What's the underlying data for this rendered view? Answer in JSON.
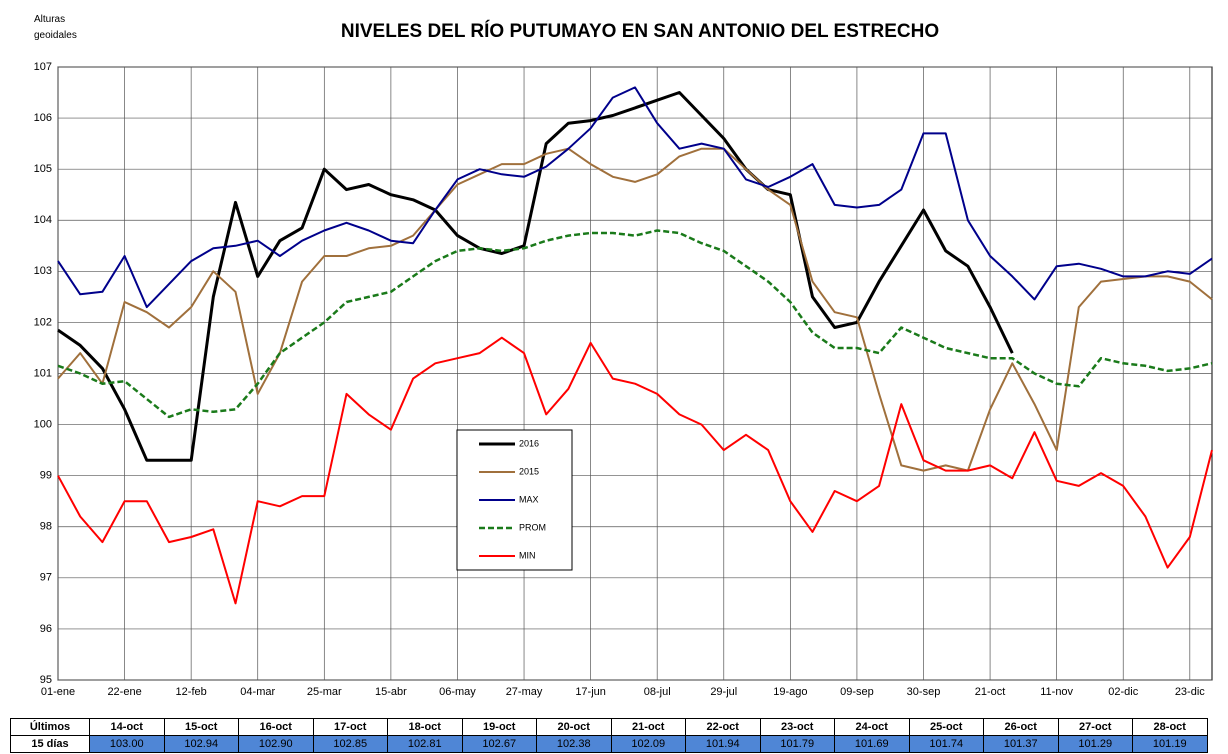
{
  "chart_data": {
    "type": "line",
    "title": "NIVELES DEL RÍO PUTUMAYO EN SAN ANTONIO DEL ESTRECHO",
    "y_label": "Alturas geoidales",
    "categories": [
      "01-ene",
      null,
      null,
      "22-ene",
      null,
      null,
      "12-feb",
      null,
      null,
      "04-mar",
      null,
      null,
      "25-mar",
      null,
      null,
      "15-abr",
      null,
      null,
      "06-may",
      null,
      null,
      "27-may",
      null,
      null,
      "17-jun",
      null,
      null,
      "08-jul",
      null,
      null,
      "29-jul",
      null,
      null,
      "19-ago",
      null,
      null,
      "09-sep",
      null,
      null,
      "30-sep",
      null,
      null,
      "21-oct",
      null,
      null,
      "11-nov",
      null,
      null,
      "02-dic",
      null,
      null,
      "23-dic",
      null
    ],
    "ylim": [
      95,
      107
    ],
    "yticks": [
      95,
      96,
      97,
      98,
      99,
      100,
      101,
      102,
      103,
      104,
      105,
      106,
      107
    ],
    "grid": true,
    "legend": "center",
    "series": [
      {
        "name": "2016",
        "color": "#000000",
        "style": "solid",
        "width": 3,
        "values": [
          101.85,
          101.55,
          101.1,
          100.3,
          99.3,
          99.3,
          99.3,
          102.5,
          104.35,
          102.9,
          103.6,
          103.85,
          105.0,
          104.6,
          104.7,
          104.5,
          104.4,
          104.2,
          103.7,
          103.45,
          103.35,
          103.5,
          105.5,
          105.9,
          105.95,
          106.05,
          106.2,
          106.35,
          106.5,
          106.05,
          105.6,
          105.0,
          104.6,
          104.5,
          102.5,
          101.9,
          102.0,
          102.8,
          103.5,
          104.2,
          103.4,
          103.1,
          102.3,
          101.4,
          null,
          null,
          null,
          null,
          null,
          null,
          null,
          null,
          null
        ]
      },
      {
        "name": "2015",
        "color": "#a0703c",
        "style": "solid",
        "width": 2,
        "values": [
          100.9,
          101.4,
          100.8,
          102.4,
          102.2,
          101.9,
          102.3,
          103.0,
          102.6,
          100.6,
          101.4,
          102.8,
          103.3,
          103.3,
          103.45,
          103.5,
          103.7,
          104.2,
          104.7,
          104.9,
          105.1,
          105.1,
          105.3,
          105.4,
          105.1,
          104.85,
          104.75,
          104.9,
          105.25,
          105.4,
          105.4,
          105.0,
          104.6,
          104.3,
          102.8,
          102.2,
          102.1,
          100.6,
          99.2,
          99.1,
          99.2,
          99.1,
          100.3,
          101.2,
          100.4,
          99.5,
          102.3,
          102.8,
          102.85,
          102.9,
          102.9,
          102.8,
          102.45
        ]
      },
      {
        "name": "MAX",
        "color": "#00008b",
        "style": "solid",
        "width": 2,
        "values": [
          103.2,
          102.55,
          102.6,
          103.3,
          102.3,
          102.75,
          103.2,
          103.45,
          103.5,
          103.6,
          103.3,
          103.6,
          103.8,
          103.95,
          103.8,
          103.6,
          103.55,
          104.2,
          104.8,
          105.0,
          104.9,
          104.85,
          105.05,
          105.4,
          105.8,
          106.4,
          106.6,
          105.9,
          105.4,
          105.5,
          105.4,
          104.8,
          104.65,
          104.85,
          105.1,
          104.3,
          104.25,
          104.3,
          104.6,
          105.7,
          105.7,
          104.0,
          103.3,
          102.9,
          102.45,
          103.1,
          103.15,
          103.05,
          102.9,
          102.9,
          103.0,
          102.95,
          103.25
        ]
      },
      {
        "name": "PROM",
        "color": "#1a7a1a",
        "style": "dashed",
        "width": 2.5,
        "values": [
          101.15,
          101.0,
          100.8,
          100.85,
          100.5,
          100.15,
          100.3,
          100.25,
          100.3,
          100.8,
          101.4,
          101.7,
          102.0,
          102.4,
          102.5,
          102.6,
          102.9,
          103.2,
          103.4,
          103.45,
          103.4,
          103.45,
          103.6,
          103.7,
          103.75,
          103.75,
          103.7,
          103.8,
          103.75,
          103.55,
          103.4,
          103.1,
          102.8,
          102.4,
          101.8,
          101.5,
          101.5,
          101.4,
          101.9,
          101.7,
          101.5,
          101.4,
          101.3,
          101.3,
          101.0,
          100.8,
          100.75,
          101.3,
          101.2,
          101.15,
          101.05,
          101.1,
          101.2
        ]
      },
      {
        "name": "MIN",
        "color": "#ff0000",
        "style": "solid",
        "width": 2,
        "values": [
          99.0,
          98.2,
          97.7,
          98.5,
          98.5,
          97.7,
          97.8,
          97.95,
          96.5,
          98.5,
          98.4,
          98.6,
          98.6,
          100.6,
          100.2,
          99.9,
          100.9,
          101.2,
          101.3,
          101.4,
          101.7,
          101.4,
          100.2,
          100.7,
          101.6,
          100.9,
          100.8,
          100.6,
          100.2,
          100.0,
          99.5,
          99.8,
          99.5,
          98.5,
          97.9,
          98.7,
          98.5,
          98.8,
          100.4,
          99.3,
          99.1,
          99.1,
          99.2,
          98.95,
          99.85,
          98.9,
          98.8,
          99.05,
          98.8,
          98.2,
          97.2,
          97.8,
          99.5
        ]
      }
    ]
  },
  "table": {
    "header": [
      "Últimos",
      "14-oct",
      "15-oct",
      "16-oct",
      "17-oct",
      "18-oct",
      "19-oct",
      "20-oct",
      "21-oct",
      "22-oct",
      "23-oct",
      "24-oct",
      "25-oct",
      "26-oct",
      "27-oct",
      "28-oct"
    ],
    "row": [
      "15 días",
      "103.00",
      "102.94",
      "102.90",
      "102.85",
      "102.81",
      "102.67",
      "102.38",
      "102.09",
      "101.94",
      "101.79",
      "101.69",
      "101.74",
      "101.37",
      "101.29",
      "101.19"
    ]
  }
}
